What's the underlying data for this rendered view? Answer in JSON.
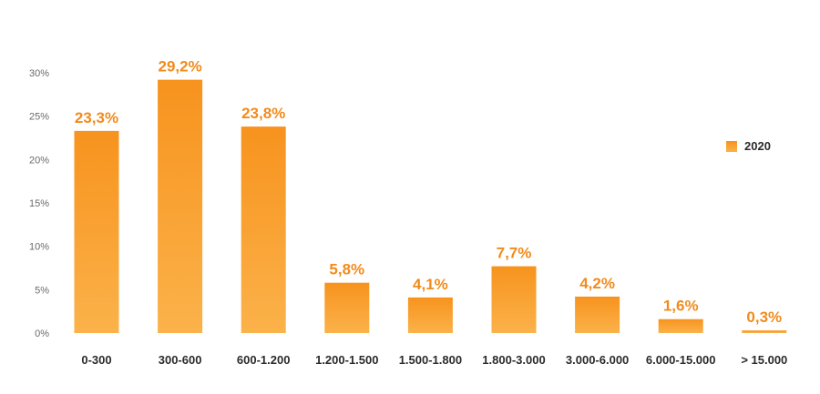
{
  "chart_data": {
    "type": "bar",
    "title": "",
    "xlabel": "",
    "ylabel": "",
    "categories": [
      "0-300",
      "300-600",
      "600-1.200",
      "1.200-1.500",
      "1.500-1.800",
      "1.800-3.000",
      "3.000-6.000",
      "6.000-15.000",
      "> 15.000"
    ],
    "series": [
      {
        "name": "2020",
        "values": [
          23.3,
          29.2,
          23.8,
          5.8,
          4.1,
          7.7,
          4.2,
          1.6,
          0.3
        ],
        "value_labels": [
          "23,3%",
          "29,2%",
          "23,8%",
          "5,8%",
          "4,1%",
          "7,7%",
          "4,2%",
          "1,6%",
          "0,3%"
        ]
      }
    ],
    "ylim": [
      0,
      30
    ],
    "yticks": [
      0,
      5,
      10,
      15,
      20,
      25,
      30
    ],
    "ytick_labels": [
      "0%",
      "5%",
      "10%",
      "15%",
      "20%",
      "25%",
      "30%"
    ],
    "grid": false,
    "legend": "right",
    "colors": {
      "bar_top": "#f7931e",
      "bar_bottom": "#fbb24a",
      "label": "#f28b1c"
    }
  }
}
